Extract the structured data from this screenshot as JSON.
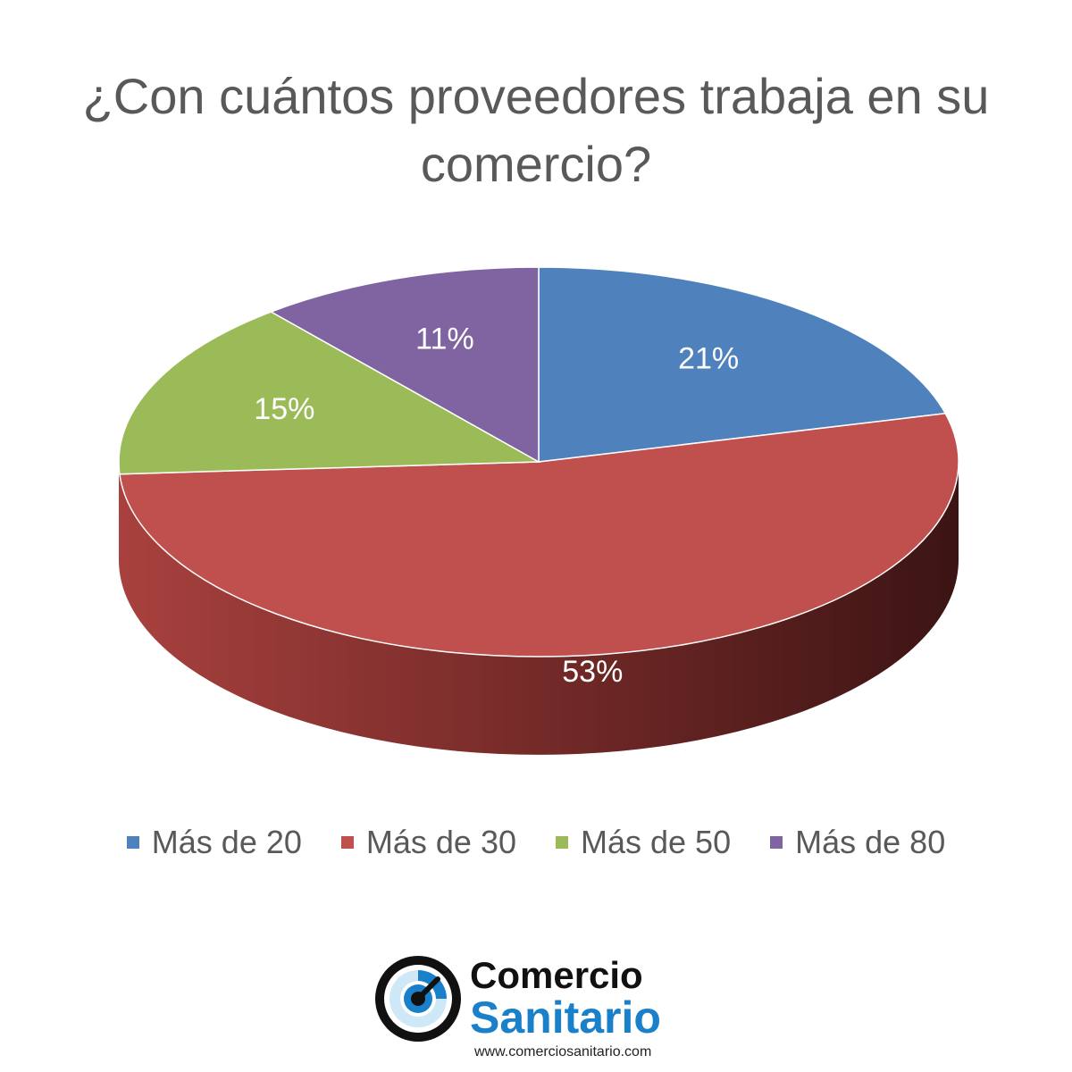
{
  "chart_data": {
    "type": "pie",
    "title_line1": "¿Con cuántos proveedores trabaja en su",
    "title_line2": "comercio?",
    "categories": [
      "Más de 20",
      "Más de 30",
      "Más de 50",
      "Más de 80"
    ],
    "values": [
      21,
      53,
      15,
      11
    ],
    "value_labels": [
      "21%",
      "53%",
      "15%",
      "11%"
    ],
    "colors": [
      "#4f81bd",
      "#c0504d",
      "#9bbb59",
      "#8064a2"
    ],
    "legend_position": "bottom",
    "style": "3d"
  },
  "brand": {
    "name_line1": "Comercio",
    "name_line2": "Sanitario",
    "url": "www.comerciosanitario.com"
  }
}
